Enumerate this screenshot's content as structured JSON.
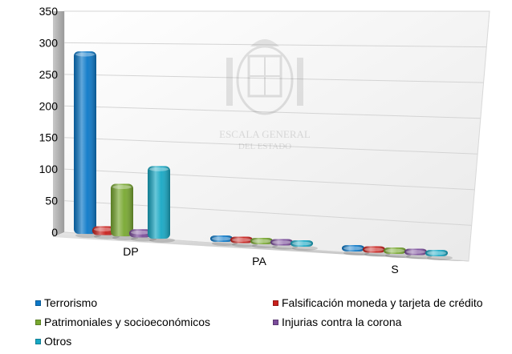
{
  "chart_data": {
    "type": "bar",
    "categories": [
      "DP",
      "PA",
      "S"
    ],
    "series": [
      {
        "name": "Terrorismo",
        "color": "#0b78c8",
        "values": [
          289,
          4,
          2
        ]
      },
      {
        "name": "Falsificación moneda y tarjeta de crédito",
        "color": "#c8201c",
        "values": [
          14,
          0,
          0
        ]
      },
      {
        "name": "Patrimoniales y socioeconómicos",
        "color": "#78a830",
        "values": [
          83,
          0,
          0
        ]
      },
      {
        "name": "Injurias contra la corona",
        "color": "#7a4c9a",
        "values": [
          13,
          0,
          0
        ]
      },
      {
        "name": "Otros",
        "color": "#17a8c4",
        "values": [
          115,
          0,
          0
        ]
      }
    ],
    "yticks": [
      "0",
      "50",
      "100",
      "150",
      "200",
      "250",
      "300",
      "350"
    ],
    "ylim": [
      0,
      350
    ],
    "grid": true,
    "legend_position": "bottom",
    "watermark": {
      "line1": "ESCALA GENERAL",
      "line2": "DEL ESTADO"
    }
  }
}
